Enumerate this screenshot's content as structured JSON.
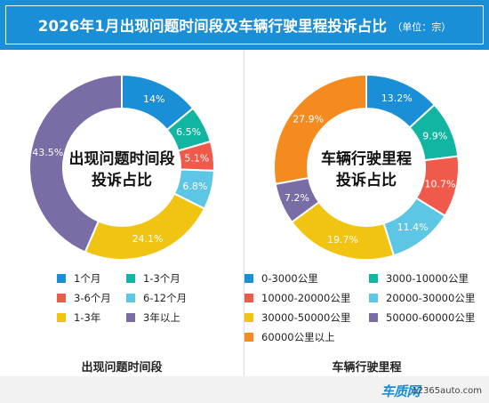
{
  "header": {
    "title": "2026年1月出现问题时间段及车辆行驶里程投诉占比",
    "unit": "（单位：宗）"
  },
  "chart_data": [
    {
      "type": "pie",
      "center_label": [
        "出现问题时间段",
        "投诉占比"
      ],
      "caption": "出现问题时间段",
      "slices": [
        {
          "label": "1个月",
          "value": 14.0,
          "display": "14%",
          "color": "#1a8ed6"
        },
        {
          "label": "1-3个月",
          "value": 6.5,
          "display": "6.5%",
          "color": "#12b5a2"
        },
        {
          "label": "3-6个月",
          "value": 5.1,
          "display": "5.1%",
          "color": "#f05a4a"
        },
        {
          "label": "6-12个月",
          "value": 6.8,
          "display": "6.8%",
          "color": "#5cc6e4"
        },
        {
          "label": "1-3年",
          "value": 24.1,
          "display": "24.1%",
          "color": "#f2c412"
        },
        {
          "label": "3年以上",
          "value": 43.5,
          "display": "43.5%",
          "color": "#7a6ca4"
        }
      ]
    },
    {
      "type": "pie",
      "center_label": [
        "车辆行驶里程",
        "投诉占比"
      ],
      "caption": "车辆行驶里程",
      "slices": [
        {
          "label": "0-3000公里",
          "value": 13.2,
          "display": "13.2%",
          "color": "#1a8ed6"
        },
        {
          "label": "3000-10000公里",
          "value": 9.9,
          "display": "9.9%",
          "color": "#12b5a2"
        },
        {
          "label": "10000-20000公里",
          "value": 10.7,
          "display": "10.7%",
          "color": "#f05a4a"
        },
        {
          "label": "20000-30000公里",
          "value": 11.4,
          "display": "11.4%",
          "color": "#5cc6e4"
        },
        {
          "label": "30000-50000公里",
          "value": 19.7,
          "display": "19.7%",
          "color": "#f2c412"
        },
        {
          "label": "50000-60000公里",
          "value": 7.2,
          "display": "7.2%",
          "color": "#7a6ca4"
        },
        {
          "label": "60000公里以上",
          "value": 27.9,
          "display": "27.9%",
          "color": "#f58a1f"
        }
      ]
    }
  ],
  "footer": {
    "logo": "车质网",
    "url": "12365auto.com"
  }
}
